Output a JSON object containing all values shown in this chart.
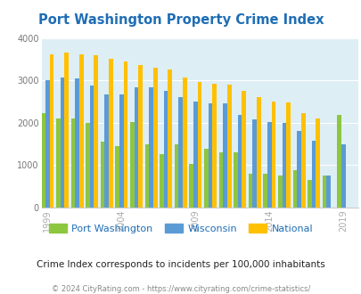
{
  "title": "Port Washington Property Crime Index",
  "years": [
    1999,
    2000,
    2001,
    2002,
    2003,
    2004,
    2005,
    2006,
    2007,
    2008,
    2009,
    2010,
    2011,
    2012,
    2013,
    2014,
    2015,
    2016,
    2017,
    2018,
    2019
  ],
  "port_washington": [
    2225,
    2100,
    2100,
    2000,
    1550,
    1450,
    2025,
    1480,
    1260,
    1480,
    1020,
    1390,
    1310,
    1300,
    800,
    790,
    760,
    880,
    640,
    750,
    2180
  ],
  "wisconsin": [
    3000,
    3080,
    3050,
    2890,
    2670,
    2670,
    2840,
    2840,
    2760,
    2600,
    2500,
    2450,
    2450,
    2195,
    2080,
    2010,
    1990,
    1800,
    1580,
    760,
    1490
  ],
  "national": [
    3620,
    3660,
    3620,
    3590,
    3520,
    3440,
    3360,
    3300,
    3250,
    3060,
    2960,
    2930,
    2900,
    2760,
    2600,
    2500,
    2470,
    2220,
    2110,
    null,
    null
  ],
  "port_washington_color": "#8dc63f",
  "wisconsin_color": "#5b9bd5",
  "national_color": "#ffc000",
  "fig_background_color": "#ffffff",
  "plot_bg_color": "#ddeef5",
  "title_color": "#1f6eb5",
  "ylim": [
    0,
    4000
  ],
  "yticks": [
    0,
    1000,
    2000,
    3000,
    4000
  ],
  "subtitle": "Crime Index corresponds to incidents per 100,000 inhabitants",
  "footer": "© 2024 CityRating.com - https://www.cityrating.com/crime-statistics/",
  "legend_labels": [
    "Port Washington",
    "Wisconsin",
    "National"
  ],
  "bar_width": 0.28,
  "xtick_positions": [
    1999,
    2004,
    2009,
    2014,
    2019
  ],
  "tick_color": "#aaaaaa",
  "subtitle_color": "#222222",
  "footer_color": "#888888"
}
